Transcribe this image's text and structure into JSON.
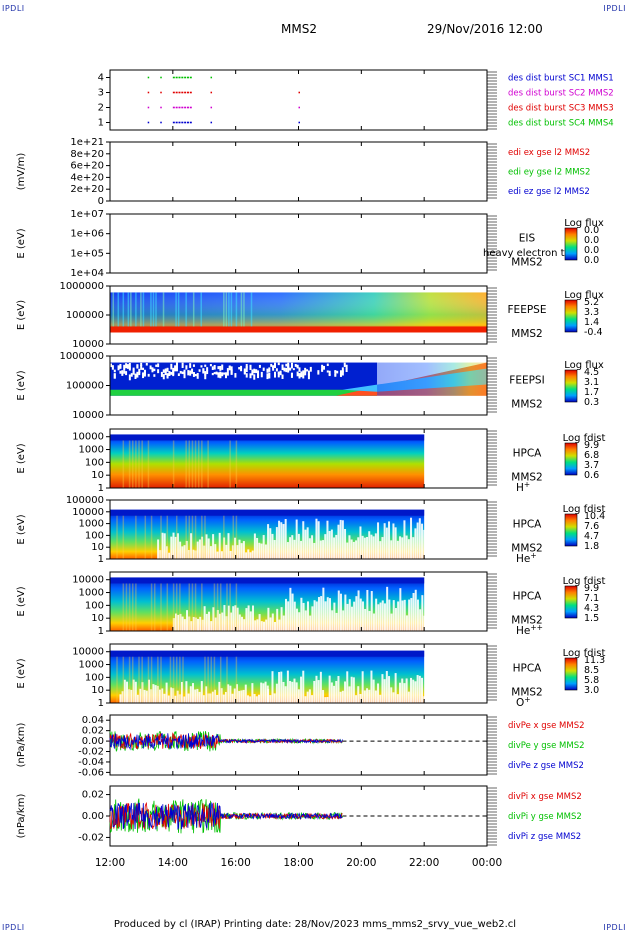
{
  "header": {
    "corner_tl": "IPDLI",
    "corner_tr": "IPDLI",
    "corner_bl": "IPDLI",
    "corner_br": "IPDLI",
    "spacecraft": "MMS2",
    "datetime": "29/Nov/2016 12:00"
  },
  "footer": {
    "text": "Produced by cl (IRAP)   Printing date: 28/Nov/2023   mms_mms2_srvy_vue_web2.cl"
  },
  "time_axis": {
    "labels": [
      "12:00",
      "14:00",
      "16:00",
      "18:00",
      "20:00",
      "22:00",
      "00:00"
    ],
    "range_hours": [
      12,
      24
    ]
  },
  "colors": {
    "red": "#e00000",
    "magenta": "#d000d0",
    "green": "#00c000",
    "blue": "#0000d0",
    "axis": "#000000"
  },
  "chart_data": [
    {
      "type": "scatter",
      "panel": "burst-availability",
      "yticks": [
        "1",
        "2",
        "3",
        "4"
      ],
      "ylim": [
        0.5,
        4.5
      ],
      "legend": [
        {
          "text": "des dist burst SC1 MMS1",
          "color": "#0000d0"
        },
        {
          "text": "des dist burst SC2 MMS2",
          "color": "#d000d0"
        },
        {
          "text": "des dist burst SC3 MMS3",
          "color": "#e00000"
        },
        {
          "text": "des dist burst SC4 MMS4",
          "color": "#00c000"
        }
      ],
      "series": [
        {
          "row": 4,
          "color": "#00c000",
          "segments": [
            [
              13.2,
              13.25
            ],
            [
              13.6,
              13.65
            ],
            [
              14.0,
              14.6
            ],
            [
              15.2,
              15.25
            ]
          ]
        },
        {
          "row": 3,
          "color": "#e00000",
          "segments": [
            [
              13.2,
              13.25
            ],
            [
              13.6,
              13.65
            ],
            [
              14.0,
              14.6
            ],
            [
              15.2,
              15.25
            ],
            [
              18.0,
              18.03
            ]
          ]
        },
        {
          "row": 2,
          "color": "#d000d0",
          "segments": [
            [
              13.2,
              13.25
            ],
            [
              13.6,
              13.65
            ],
            [
              14.0,
              14.6
            ],
            [
              15.2,
              15.25
            ],
            [
              18.0,
              18.03
            ]
          ]
        },
        {
          "row": 1,
          "color": "#0000d0",
          "segments": [
            [
              13.2,
              13.25
            ],
            [
              13.6,
              13.65
            ],
            [
              14.0,
              14.6
            ],
            [
              15.2,
              15.25
            ],
            [
              18.0,
              18.03
            ]
          ]
        }
      ]
    },
    {
      "type": "line",
      "panel": "edi-electric-field",
      "ylabel": "(mV/m)",
      "yticks": [
        "1e+21",
        "8e+20",
        "6e+20",
        "4e+20",
        "2e+20",
        "0"
      ],
      "ylim": [
        0,
        1e+21
      ],
      "legend": [
        {
          "text": "edi ex gse l2 MMS2",
          "color": "#e00000"
        },
        {
          "text": "edi ey gse l2 MMS2",
          "color": "#00c000"
        },
        {
          "text": "edi ez gse l2 MMS2",
          "color": "#0000d0"
        }
      ]
    },
    {
      "type": "heatmap",
      "panel": "eis",
      "ylabel": "E (eV)",
      "yticks": [
        "1e+07",
        "1e+06",
        "1e+05",
        "1e+04"
      ],
      "ylim": [
        10000,
        10000000
      ],
      "yscale": "log",
      "instrument": "EIS",
      "spacecraft": "MMS2",
      "extra_label": "heavy electron tof",
      "colorbar": {
        "title": "Log flux",
        "labels": [
          "0.0",
          "0.0",
          "0.0",
          "0.0"
        ]
      }
    },
    {
      "type": "heatmap",
      "panel": "feeps-electrons",
      "ylabel": "E (eV)",
      "yticks": [
        "1000000",
        "100000",
        "10000"
      ],
      "ylim": [
        10000,
        1000000
      ],
      "yscale": "log",
      "instrument": "FEEPSE",
      "spacecraft": "MMS2",
      "colorbar": {
        "title": "Log flux",
        "labels": [
          "5.2",
          "3.3",
          "1.4",
          "-0.4"
        ]
      }
    },
    {
      "type": "heatmap",
      "panel": "feeps-ions",
      "ylabel": "E (eV)",
      "yticks": [
        "1000000",
        "100000",
        "10000"
      ],
      "ylim": [
        10000,
        1000000
      ],
      "yscale": "log",
      "instrument": "FEEPSI",
      "spacecraft": "MMS2",
      "colorbar": {
        "title": "Log flux",
        "labels": [
          "4.5",
          "3.1",
          "1.7",
          "0.3"
        ]
      }
    },
    {
      "type": "heatmap",
      "panel": "hpca-hplus",
      "ylabel": "E (eV)",
      "yticks": [
        "10000",
        "1000",
        "100",
        "10",
        "1"
      ],
      "ylim": [
        1,
        40000
      ],
      "yscale": "log",
      "instrument": "HPCA",
      "spacecraft": "MMS2",
      "species": "H",
      "species_sup": "+",
      "colorbar": {
        "title": "Log fdist",
        "labels": [
          "9.9",
          "6.8",
          "3.7",
          "0.6"
        ]
      }
    },
    {
      "type": "heatmap",
      "panel": "hpca-heplus",
      "ylabel": "E (eV)",
      "yticks": [
        "100000",
        "10000",
        "1000",
        "100",
        "10",
        "1"
      ],
      "ylim": [
        1,
        100000
      ],
      "yscale": "log",
      "instrument": "HPCA",
      "spacecraft": "MMS2",
      "species": "He",
      "species_sup": "+",
      "colorbar": {
        "title": "Log fdist",
        "labels": [
          "10.4",
          "7.6",
          "4.7",
          "1.8"
        ]
      }
    },
    {
      "type": "heatmap",
      "panel": "hpca-heplusplus",
      "ylabel": "E (eV)",
      "yticks": [
        "10000",
        "1000",
        "100",
        "10",
        "1"
      ],
      "ylim": [
        1,
        40000
      ],
      "yscale": "log",
      "instrument": "HPCA",
      "spacecraft": "MMS2",
      "species": "He",
      "species_sup": "++",
      "colorbar": {
        "title": "Log fdist",
        "labels": [
          "9.9",
          "7.1",
          "4.3",
          "1.5"
        ]
      }
    },
    {
      "type": "heatmap",
      "panel": "hpca-oplus",
      "ylabel": "E (eV)",
      "yticks": [
        "10000",
        "1000",
        "100",
        "10",
        "1"
      ],
      "ylim": [
        1,
        40000
      ],
      "yscale": "log",
      "instrument": "HPCA",
      "spacecraft": "MMS2",
      "species": "O",
      "species_sup": "+",
      "colorbar": {
        "title": "Log fdist",
        "labels": [
          "11.3",
          "8.5",
          "5.8",
          "3.0"
        ]
      }
    },
    {
      "type": "line",
      "panel": "div-pe",
      "ylabel": "(nPa/km)",
      "yticks": [
        "0.04",
        "0.02",
        "0.00",
        "-0.02",
        "-0.04",
        "-0.06"
      ],
      "ylim": [
        -0.065,
        0.05
      ],
      "legend": [
        {
          "text": "divPe x gse MMS2",
          "color": "#e00000"
        },
        {
          "text": "divPe y gse MMS2",
          "color": "#00c000"
        },
        {
          "text": "divPe z gse MMS2",
          "color": "#0000d0"
        }
      ]
    },
    {
      "type": "line",
      "panel": "div-pi",
      "ylabel": "(nPa/km)",
      "yticks": [
        "0.02",
        "0.00",
        "-0.02"
      ],
      "ylim": [
        -0.028,
        0.028
      ],
      "legend": [
        {
          "text": "divPi x gse MMS2",
          "color": "#e00000"
        },
        {
          "text": "divPi y gse MMS2",
          "color": "#00c000"
        },
        {
          "text": "divPi z gse MMS2",
          "color": "#0000d0"
        }
      ]
    }
  ]
}
